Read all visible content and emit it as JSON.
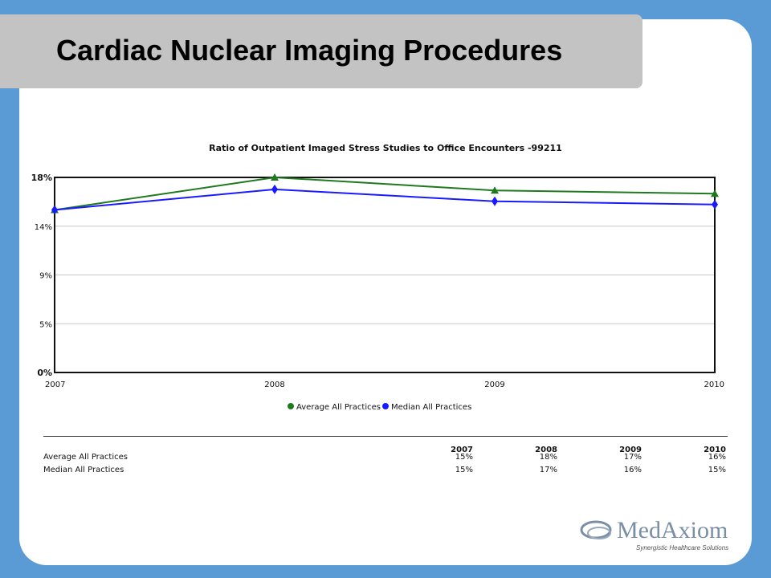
{
  "slide": {
    "title": "Cardiac Nuclear Imaging Procedures"
  },
  "chart_data": {
    "type": "line",
    "title": "Ratio of Outpatient Imaged Stress Studies to Office Encounters -99211",
    "categories": [
      "2007",
      "2008",
      "2009",
      "2010"
    ],
    "y_ticks": [
      "0%",
      "5%",
      "9%",
      "14%",
      "18%"
    ],
    "ylim": [
      0,
      18
    ],
    "series": [
      {
        "name": "Average All Practices",
        "color": "#1f7a1f",
        "marker": "triangle",
        "values": [
          15,
          18,
          16.8,
          16.5
        ]
      },
      {
        "name": "Median All Practices",
        "color": "#1a1aff",
        "marker": "diamond",
        "values": [
          15,
          16.9,
          15.8,
          15.5
        ]
      }
    ],
    "grid": true,
    "legend": "bottom",
    "table": {
      "headers": [
        "2007",
        "2008",
        "2009",
        "2010"
      ],
      "rows": [
        {
          "label": "Average All Practices",
          "values": [
            "15%",
            "18%",
            "17%",
            "16%"
          ]
        },
        {
          "label": "Median All Practices",
          "values": [
            "15%",
            "17%",
            "16%",
            "15%"
          ]
        }
      ]
    }
  },
  "logo": {
    "word": "MedAxiom",
    "tagline": "Synergistic Healthcare Solutions",
    "color": "#7a8ea6"
  }
}
